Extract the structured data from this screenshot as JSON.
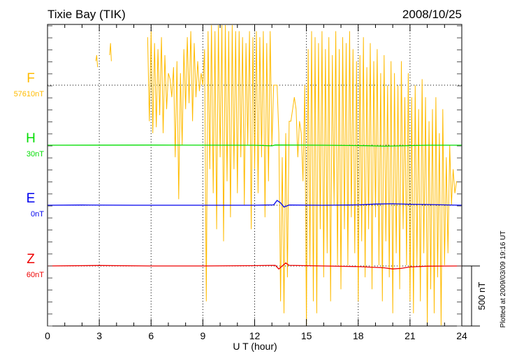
{
  "chart_data": {
    "type": "line",
    "title": "Tixie Bay (TIK)",
    "date": "2008/10/25",
    "xlabel": "U T (hour)",
    "xlim": [
      0,
      24
    ],
    "xticks": [
      0,
      3,
      6,
      9,
      12,
      15,
      18,
      21,
      24
    ],
    "scale_label": "500 nT",
    "scale_nT": 500,
    "minor_tick_nT": 100,
    "plotted_note": "Plotted at 2009/03/09 19:16 UT",
    "grid": "dotted",
    "series": [
      {
        "name": "F",
        "baseline_label": "57610nT",
        "color": "#ffbb00",
        "segments": [
          {
            "start": 2.8,
            "step": 0.05,
            "values": [
              200,
              250,
              150
            ]
          },
          {
            "start": 3.6,
            "step": 0.05,
            "values": [
              250,
              350,
              200
            ]
          },
          {
            "start": 5.8,
            "step": 0.1,
            "values": [
              400,
              -300,
              450,
              -400,
              350,
              -350,
              300,
              -250,
              400,
              -400,
              250,
              -200,
              100,
              50,
              -100,
              150,
              -600,
              200,
              -950,
              100,
              -500,
              300,
              -200,
              400,
              -150,
              450,
              -300,
              350,
              -100,
              200,
              -50,
              100,
              0,
              300,
              -1800,
              450,
              -700,
              500,
              -900,
              450,
              -1200,
              500,
              -600,
              500,
              -1300,
              500,
              -800,
              450,
              -1100,
              500,
              -700,
              450,
              -900,
              450,
              -600,
              400,
              -1000,
              350,
              -500,
              450,
              -1200,
              400,
              -700,
              450,
              -900,
              400,
              -600,
              450,
              -1100,
              350,
              -800,
              450,
              -500,
              0,
              0,
              0,
              -400,
              -1800,
              -600,
              -1900,
              -400,
              -1600,
              -300,
              -300,
              -200,
              -100,
              -200,
              -600,
              -300,
              -400,
              -800,
              0,
              -2000,
              300,
              -1500,
              450,
              -1800,
              400,
              -1900,
              350,
              -1200,
              450,
              -1600,
              300,
              -1400,
              400,
              -1800,
              250,
              -1000,
              450,
              -1500,
              300,
              -1700,
              400,
              -1200,
              350,
              -1500,
              450,
              -1100,
              300,
              -1400,
              200,
              -1800,
              250,
              -1300,
              400,
              -1600,
              150,
              -1200,
              350,
              -1700,
              200,
              -1100,
              300,
              -1500,
              100,
              -1800,
              250,
              -1300,
              0,
              -1600,
              200,
              -1900,
              100,
              -1400,
              0,
              -1700,
              200,
              -1200,
              -100,
              -1500,
              100,
              -1800,
              -100,
              -1900,
              0,
              -1500,
              -200,
              -1800,
              50,
              -1400,
              -100,
              -2000,
              -300,
              -1700,
              -200,
              -1900,
              -100,
              -1600,
              -400,
              -2000,
              -200,
              -1500,
              -600,
              -1400,
              -500,
              -1000,
              -700,
              -900,
              -800
            ]
          }
        ]
      },
      {
        "name": "H",
        "baseline_label": "30nT",
        "color": "#00dd00",
        "points": [
          [
            0,
            0
          ],
          [
            6,
            1
          ],
          [
            12,
            0
          ],
          [
            13,
            -5
          ],
          [
            13.2,
            2
          ],
          [
            16,
            0
          ],
          [
            18.5,
            -4
          ],
          [
            19.5,
            -8
          ],
          [
            20.5,
            -5
          ],
          [
            22,
            0
          ],
          [
            24,
            0
          ]
        ]
      },
      {
        "name": "E",
        "baseline_label": "0nT",
        "color": "#0000ee",
        "points": [
          [
            0,
            0
          ],
          [
            2,
            2
          ],
          [
            5,
            0
          ],
          [
            9,
            0
          ],
          [
            12,
            0
          ],
          [
            13.1,
            3
          ],
          [
            13.3,
            40
          ],
          [
            13.5,
            20
          ],
          [
            13.7,
            -15
          ],
          [
            14,
            2
          ],
          [
            16,
            0
          ],
          [
            18,
            3
          ],
          [
            19,
            10
          ],
          [
            20,
            12
          ],
          [
            21,
            8
          ],
          [
            22,
            6
          ],
          [
            24,
            0
          ]
        ]
      },
      {
        "name": "Z",
        "baseline_label": "60nT",
        "color": "#ee0000",
        "points": [
          [
            0,
            0
          ],
          [
            3,
            4
          ],
          [
            6,
            0
          ],
          [
            9,
            0
          ],
          [
            12,
            3
          ],
          [
            13.2,
            5
          ],
          [
            13.4,
            -25
          ],
          [
            13.6,
            0
          ],
          [
            13.8,
            25
          ],
          [
            14,
            5
          ],
          [
            16,
            0
          ],
          [
            18,
            -5
          ],
          [
            19.5,
            -15
          ],
          [
            20,
            -25
          ],
          [
            20.5,
            -20
          ],
          [
            21,
            -8
          ],
          [
            22,
            -2
          ],
          [
            24,
            0
          ]
        ]
      }
    ]
  }
}
